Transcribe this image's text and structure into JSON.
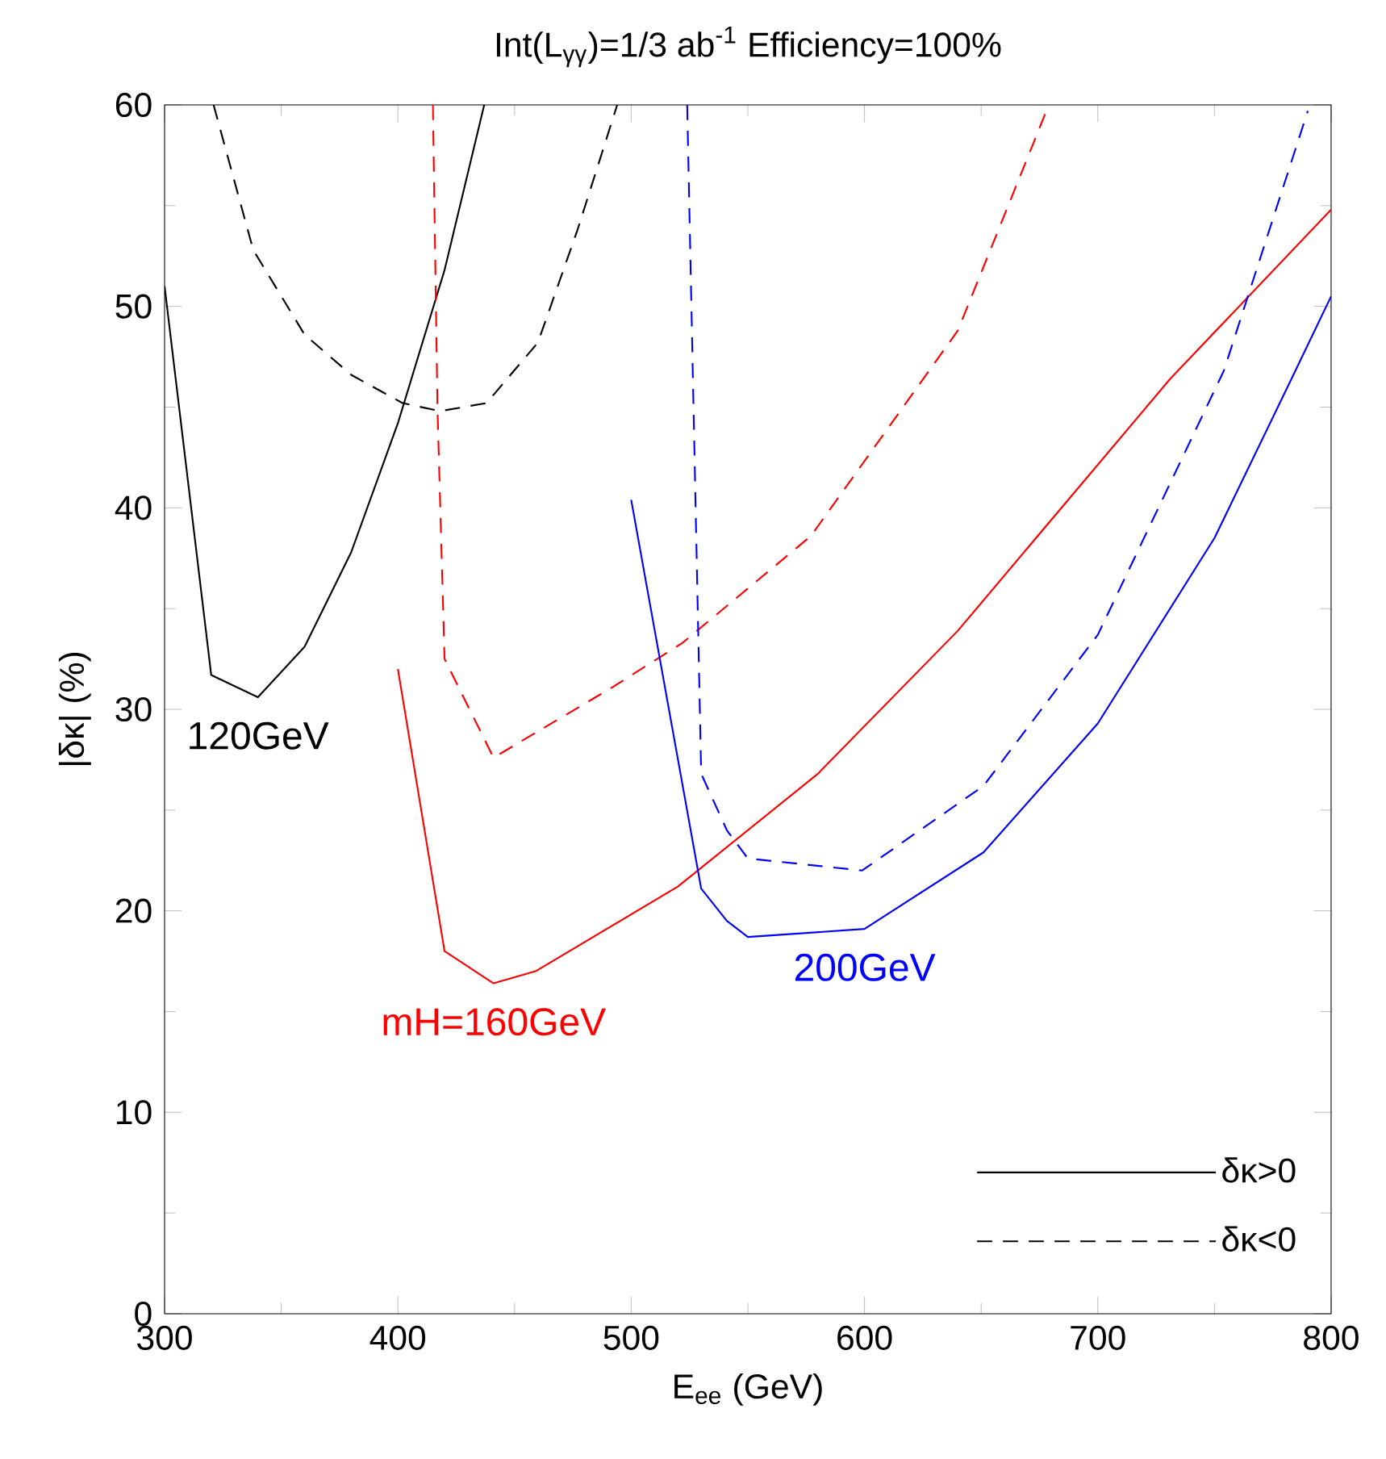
{
  "chart_data": {
    "type": "line",
    "title": "Int(L$_{γγ}$)=1/3 ab$^{-1}$  Efficiency=100%",
    "xlabel": "E$_{ee}$  (GeV)",
    "ylabel": "|δκ|  (%)",
    "xlim": [
      300,
      800
    ],
    "ylim": [
      0,
      60
    ],
    "xticks": [
      300,
      400,
      500,
      600,
      700,
      800
    ],
    "yticks": [
      0,
      10,
      20,
      30,
      40,
      50,
      60
    ],
    "grid": false,
    "legend": "bottom right",
    "marker": "none",
    "annotations": [
      {
        "text": "120GeV",
        "x": 340,
        "y": 30.6
      },
      {
        "text": "mH=160GeV",
        "x": 441,
        "y": 16.4
      },
      {
        "text": "200GeV",
        "x": 600,
        "y": 19.1
      }
    ],
    "series": [
      {
        "name": "δκ>0",
        "color": "#000000",
        "line_style": "solid",
        "x": [
          300,
          320,
          340,
          360,
          380,
          400,
          420,
          437
        ],
        "values": [
          51,
          31.7,
          30.6,
          33.1,
          37.8,
          44.2,
          51.8,
          60
        ]
      },
      {
        "name": "δκ<0",
        "color": "#000000",
        "line_style": "dashed",
        "x": [
          321,
          338,
          360,
          380,
          402,
          418,
          438,
          460,
          477,
          494
        ],
        "values": [
          60,
          52.8,
          48.6,
          46.6,
          45.2,
          44.8,
          45.2,
          48.2,
          53.8,
          60
        ]
      },
      {
        "color": "#ff0000",
        "line_style": "solid",
        "x": [
          400,
          420,
          441,
          459,
          520,
          580,
          640,
          731,
          800
        ],
        "values": [
          32,
          18,
          16.4,
          17,
          21.2,
          26.8,
          33.9,
          46.4,
          54.8
        ]
      },
      {
        "color": "#ff0000",
        "line_style": "dashed",
        "x": [
          415,
          417,
          420,
          441,
          492,
          522,
          577,
          640,
          679
        ],
        "values": [
          60,
          44.8,
          32.5,
          27.6,
          31.1,
          33.3,
          38.6,
          48.8,
          60
        ]
      },
      {
        "color": "#0000ff",
        "line_style": "solid",
        "x": [
          500,
          530,
          541,
          550,
          600,
          651,
          700,
          750,
          783,
          800
        ],
        "values": [
          40.4,
          21.1,
          19.5,
          18.7,
          19.1,
          22.9,
          29.3,
          38.5,
          46.4,
          50.5
        ]
      },
      {
        "color": "#0000ff",
        "line_style": "dashed",
        "x": [
          524,
          530,
          541,
          550,
          599,
          651,
          700,
          754,
          790
        ],
        "values": [
          60,
          26.8,
          24,
          22.6,
          22,
          26.2,
          33.7,
          46.8,
          59.7
        ]
      }
    ]
  }
}
